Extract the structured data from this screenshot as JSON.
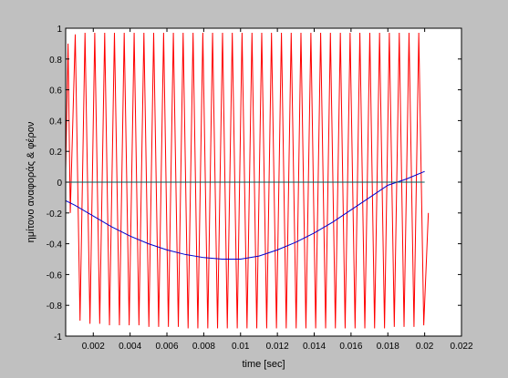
{
  "chart_data": {
    "type": "line",
    "title": "",
    "xlabel": "time [sec]",
    "ylabel": "ημίτονο αναφοράς   & φέρον",
    "xlim": [
      0.0005,
      0.022
    ],
    "ylim": [
      -1,
      1
    ],
    "grid": false,
    "legend": "none",
    "x_ticks": [
      0.002,
      0.004,
      0.006,
      0.008,
      0.01,
      0.012,
      0.014,
      0.016,
      0.018,
      0.02,
      0.022
    ],
    "x_tick_labels": [
      "0.002",
      "0.004",
      "0.006",
      "0.008",
      "0.01",
      "0.012",
      "0.014",
      "0.016",
      "0.018",
      "0.02",
      "0.022"
    ],
    "y_ticks": [
      -1,
      -0.8,
      -0.6,
      -0.4,
      -0.2,
      0,
      0.2,
      0.4,
      0.6,
      0.8,
      1
    ],
    "y_tick_labels": [
      "-1",
      "-0.8",
      "-0.6",
      "-0.4",
      "-0.2",
      "0",
      "0.2",
      "0.4",
      "0.6",
      "0.8",
      "1"
    ],
    "series": [
      {
        "color": "#ff0000",
        "x": [
          0.0005,
          0.00063,
          0.00075,
          0.00102,
          0.00128,
          0.00155,
          0.00182,
          0.00208,
          0.00235,
          0.00262,
          0.00288,
          0.00315,
          0.00342,
          0.00368,
          0.00395,
          0.00422,
          0.00448,
          0.00475,
          0.00502,
          0.00528,
          0.00555,
          0.00582,
          0.00608,
          0.00635,
          0.00662,
          0.00688,
          0.00715,
          0.00742,
          0.00768,
          0.00795,
          0.00822,
          0.00848,
          0.00875,
          0.00902,
          0.00928,
          0.00955,
          0.00982,
          0.01008,
          0.01035,
          0.01062,
          0.01088,
          0.01115,
          0.01142,
          0.01168,
          0.01195,
          0.01222,
          0.01248,
          0.01275,
          0.01302,
          0.01328,
          0.01355,
          0.01382,
          0.01408,
          0.01435,
          0.01462,
          0.01488,
          0.01515,
          0.01542,
          0.01568,
          0.01595,
          0.01622,
          0.01648,
          0.01675,
          0.01702,
          0.01728,
          0.01755,
          0.01782,
          0.01808,
          0.01835,
          0.01862,
          0.01888,
          0.01915,
          0.01942,
          0.01968,
          0.01995,
          0.0202
        ],
        "y": [
          0.08,
          0.9,
          -0.2,
          0.96,
          -0.9,
          0.97,
          -0.92,
          0.97,
          -0.92,
          0.97,
          -0.93,
          0.97,
          -0.93,
          0.97,
          -0.93,
          0.97,
          -0.93,
          0.97,
          -0.94,
          0.97,
          -0.94,
          0.97,
          -0.94,
          0.97,
          -0.94,
          0.97,
          -0.95,
          0.97,
          -0.95,
          0.97,
          -0.95,
          0.97,
          -0.95,
          0.97,
          -0.95,
          0.97,
          -0.95,
          0.97,
          -0.95,
          0.97,
          -0.95,
          0.97,
          -0.95,
          0.97,
          -0.95,
          0.97,
          -0.95,
          0.97,
          -0.95,
          0.97,
          -0.95,
          0.97,
          -0.95,
          0.97,
          -0.95,
          0.97,
          -0.95,
          0.97,
          -0.95,
          0.97,
          -0.95,
          0.97,
          -0.95,
          0.97,
          -0.95,
          0.97,
          -0.95,
          0.97,
          -0.94,
          0.97,
          -0.94,
          0.97,
          -0.94,
          0.97,
          -0.93,
          -0.2
        ]
      },
      {
        "color": "#0000cc",
        "x": [
          0.0005,
          0.001,
          0.002,
          0.003,
          0.004,
          0.005,
          0.006,
          0.007,
          0.008,
          0.009,
          0.01,
          0.011,
          0.012,
          0.013,
          0.014,
          0.015,
          0.016,
          0.017,
          0.018,
          0.019,
          0.02
        ],
        "y": [
          -0.12,
          -0.15,
          -0.22,
          -0.29,
          -0.35,
          -0.4,
          -0.44,
          -0.47,
          -0.49,
          -0.5,
          -0.5,
          -0.48,
          -0.44,
          -0.39,
          -0.33,
          -0.26,
          -0.18,
          -0.1,
          -0.02,
          0.02,
          0.07
        ]
      },
      {
        "color": "#006060",
        "x": [
          0.0005,
          0.02
        ],
        "y": [
          0,
          0
        ]
      }
    ]
  }
}
